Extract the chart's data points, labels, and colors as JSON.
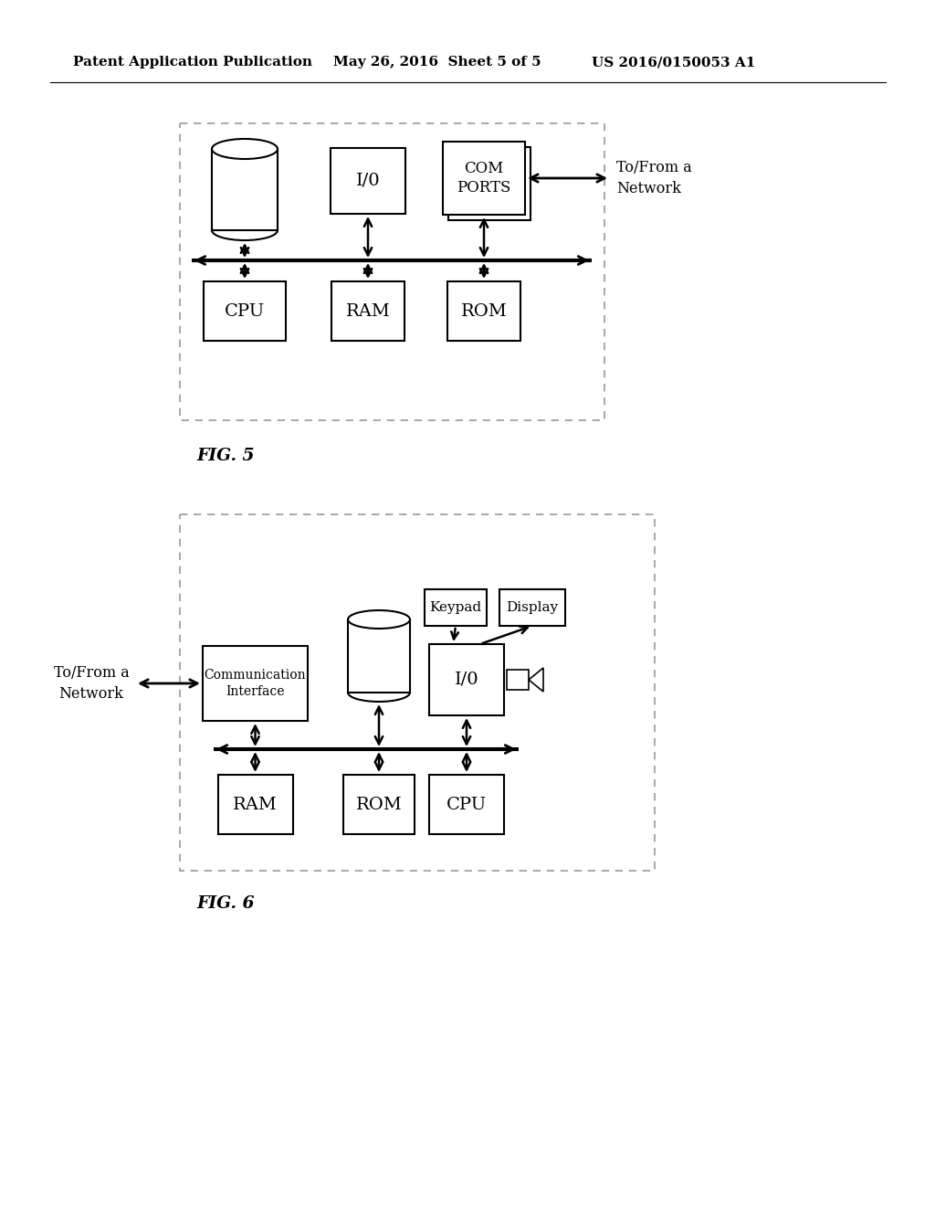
{
  "header_left": "Patent Application Publication",
  "header_mid": "May 26, 2016  Sheet 5 of 5",
  "header_right": "US 2016/0150053 A1",
  "fig5_label": "FIG. 5",
  "fig6_label": "FIG. 6",
  "bg_color": "#ffffff"
}
